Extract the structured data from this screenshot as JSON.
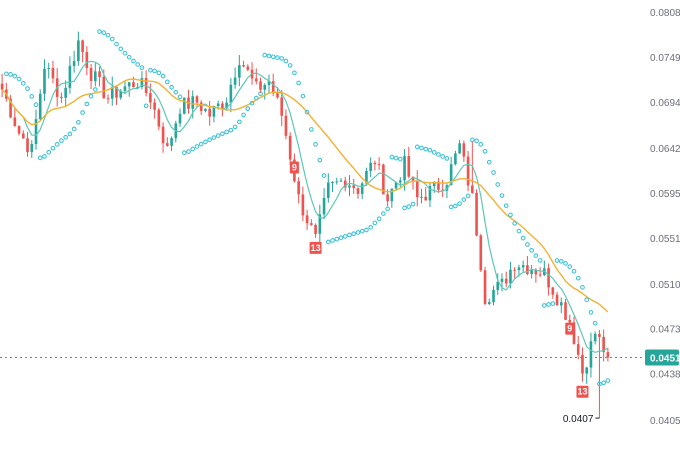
{
  "chart_data": {
    "type": "candlestick",
    "title": "",
    "xlabel": "",
    "ylabel": "",
    "y_ticks": [
      0.0808,
      0.0749,
      0.0694,
      0.0642,
      0.0595,
      0.0551,
      0.051,
      0.0473,
      0.0438,
      0.0405
    ],
    "y_tick_labels": [
      "0.0808",
      "0.0749",
      "0.0694",
      "0.0642",
      "0.0595",
      "0.0551",
      "0.0510",
      "0.0473",
      "0.0438",
      "0.0405"
    ],
    "ylim": [
      0.0398,
      0.082
    ],
    "log_scale": true,
    "grid": false,
    "current_price": 0.0451,
    "current_price_label": "0.0451",
    "low_price": 0.0407,
    "low_price_label": "0.0407",
    "colors": {
      "up": "#26a69a",
      "down": "#ef5350",
      "sar": "#40c4d8",
      "ma_fast": "#5cc8b4",
      "ma_slow": "#f4b133",
      "price_line": "#26a69a",
      "marker_bg": "#ef5350"
    },
    "markers": [
      {
        "label": "9",
        "bar": 69
      },
      {
        "label": "13",
        "bar": 74
      },
      {
        "label": "9",
        "bar": 134
      },
      {
        "label": "13",
        "bar": 137
      }
    ],
    "anchors": [
      [
        0,
        0.071
      ],
      [
        4,
        0.066
      ],
      [
        7,
        0.064
      ],
      [
        10,
        0.074
      ],
      [
        14,
        0.07
      ],
      [
        18,
        0.077
      ],
      [
        21,
        0.073
      ],
      [
        25,
        0.07
      ],
      [
        28,
        0.071
      ],
      [
        32,
        0.072
      ],
      [
        35,
        0.07
      ],
      [
        39,
        0.064
      ],
      [
        42,
        0.069
      ],
      [
        46,
        0.0695
      ],
      [
        49,
        0.068
      ],
      [
        53,
        0.07
      ],
      [
        56,
        0.075
      ],
      [
        60,
        0.071
      ],
      [
        63,
        0.072
      ],
      [
        66,
        0.068
      ],
      [
        70,
        0.059
      ],
      [
        74,
        0.055
      ],
      [
        77,
        0.06
      ],
      [
        81,
        0.061
      ],
      [
        84,
        0.06
      ],
      [
        88,
        0.063
      ],
      [
        91,
        0.059
      ],
      [
        95,
        0.0625
      ],
      [
        98,
        0.059
      ],
      [
        102,
        0.06
      ],
      [
        105,
        0.061
      ],
      [
        108,
        0.0645
      ],
      [
        111,
        0.059
      ],
      [
        114,
        0.05
      ],
      [
        118,
        0.051
      ],
      [
        121,
        0.053
      ],
      [
        125,
        0.0525
      ],
      [
        128,
        0.052
      ],
      [
        131,
        0.05
      ],
      [
        134,
        0.048
      ],
      [
        137,
        0.044
      ],
      [
        140,
        0.047
      ],
      [
        143,
        0.0451
      ]
    ]
  }
}
